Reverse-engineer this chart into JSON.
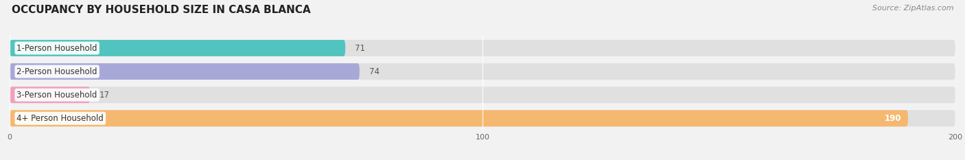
{
  "title": "OCCUPANCY BY HOUSEHOLD SIZE IN CASA BLANCA",
  "source": "Source: ZipAtlas.com",
  "categories": [
    "1-Person Household",
    "2-Person Household",
    "3-Person Household",
    "4+ Person Household"
  ],
  "values": [
    71,
    74,
    17,
    190
  ],
  "bar_colors": [
    "#52c4bf",
    "#a8a8d8",
    "#f0a0bc",
    "#f5b870"
  ],
  "background_color": "#f2f2f2",
  "bar_bg_color": "#e0e0e0",
  "xlim": [
    0,
    200
  ],
  "xticks": [
    0,
    100,
    200
  ],
  "bar_height": 0.7,
  "title_fontsize": 11,
  "source_fontsize": 8,
  "label_fontsize": 8.5,
  "value_fontsize": 8.5,
  "value_color_last": "#ffffff"
}
